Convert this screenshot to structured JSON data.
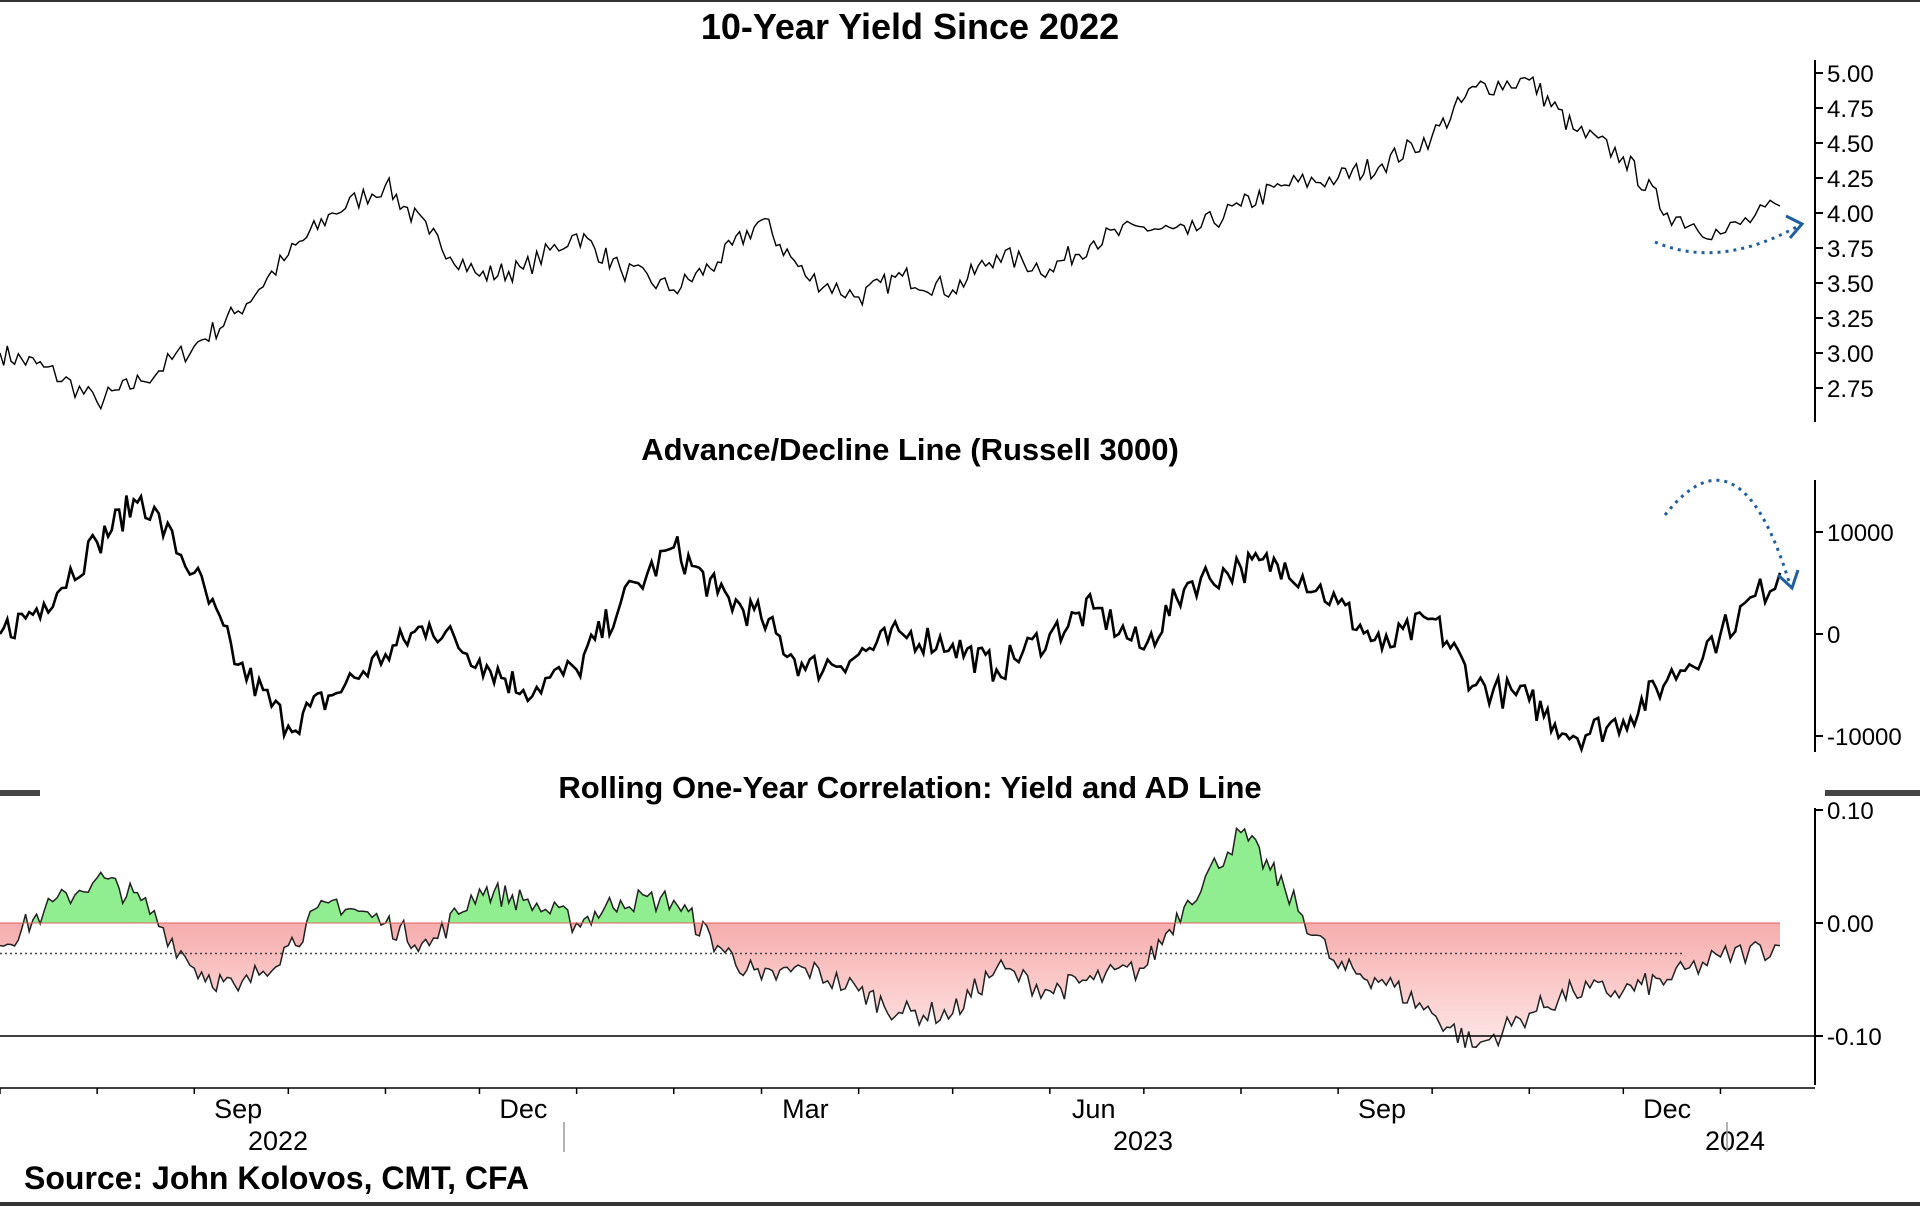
{
  "source": "Source: John Kolovos, CMT, CFA",
  "chart_data": [
    {
      "id": "yield",
      "type": "line",
      "title": "10-Year Yield Since 2022",
      "x": [
        "2022-07-01",
        "2022-07-15",
        "2022-08-01",
        "2022-08-15",
        "2022-09-01",
        "2022-09-15",
        "2022-10-01",
        "2022-10-15",
        "2022-11-01",
        "2022-11-15",
        "2022-12-01",
        "2022-12-15",
        "2023-01-01",
        "2023-01-15",
        "2023-02-01",
        "2023-02-15",
        "2023-03-01",
        "2023-03-15",
        "2023-04-01",
        "2023-04-15",
        "2023-05-01",
        "2023-05-15",
        "2023-06-01",
        "2023-06-15",
        "2023-07-01",
        "2023-07-15",
        "2023-08-01",
        "2023-08-15",
        "2023-09-01",
        "2023-09-15",
        "2023-10-01",
        "2023-10-15",
        "2023-11-01",
        "2023-11-15",
        "2023-12-01",
        "2023-12-15",
        "2024-01-01",
        "2024-01-20"
      ],
      "series": [
        {
          "values": [
            3.0,
            2.9,
            2.65,
            2.8,
            3.05,
            3.3,
            3.7,
            4.0,
            4.2,
            3.85,
            3.55,
            3.6,
            3.85,
            3.6,
            3.45,
            3.65,
            3.95,
            3.55,
            3.4,
            3.55,
            3.45,
            3.7,
            3.6,
            3.8,
            3.9,
            3.85,
            4.05,
            4.2,
            4.25,
            4.35,
            4.55,
            4.9,
            4.95,
            4.6,
            4.4,
            4.0,
            3.85,
            4.05
          ]
        }
      ],
      "ylim": [
        2.5,
        5.1
      ],
      "yticks": [
        "5.00",
        "4.75",
        "4.50",
        "4.25",
        "4.00",
        "3.75",
        "3.50",
        "3.25",
        "3.00",
        "2.75",
        "2.50"
      ],
      "color": "#000000"
    },
    {
      "id": "adline",
      "type": "line",
      "title": "Advance/Decline Line (Russell 3000)",
      "x": [
        "2022-07-01",
        "2022-07-15",
        "2022-08-01",
        "2022-08-15",
        "2022-09-01",
        "2022-09-15",
        "2022-10-01",
        "2022-10-15",
        "2022-11-01",
        "2022-11-15",
        "2022-12-01",
        "2022-12-15",
        "2023-01-01",
        "2023-01-15",
        "2023-02-01",
        "2023-02-15",
        "2023-03-01",
        "2023-03-15",
        "2023-04-01",
        "2023-04-15",
        "2023-05-01",
        "2023-05-15",
        "2023-06-01",
        "2023-06-15",
        "2023-07-01",
        "2023-07-15",
        "2023-08-01",
        "2023-08-15",
        "2023-09-01",
        "2023-09-15",
        "2023-10-01",
        "2023-10-15",
        "2023-11-01",
        "2023-11-15",
        "2023-12-01",
        "2023-12-15",
        "2024-01-01",
        "2024-01-20"
      ],
      "series": [
        {
          "values": [
            0,
            3000,
            9000,
            13500,
            6000,
            -3000,
            -9000,
            -6000,
            -2000,
            1000,
            -2500,
            -5500,
            -3500,
            3000,
            8500,
            4000,
            1500,
            -3500,
            -2000,
            0,
            -1000,
            -3500,
            0,
            2500,
            -1500,
            5000,
            6500,
            7000,
            3000,
            -1500,
            1500,
            -5000,
            -6500,
            -10000,
            -8500,
            -4500,
            0,
            6000
          ]
        }
      ],
      "ylim": [
        -12000,
        15000
      ],
      "yticks": [
        "10000",
        "0",
        "-10000"
      ],
      "color": "#000000"
    },
    {
      "id": "correlation",
      "type": "area",
      "title": "Rolling One-Year Correlation: Yield and AD Line",
      "x": [
        "2022-07-01",
        "2022-07-15",
        "2022-08-01",
        "2022-08-15",
        "2022-09-01",
        "2022-09-15",
        "2022-10-01",
        "2022-10-15",
        "2022-11-01",
        "2022-11-15",
        "2022-12-01",
        "2022-12-15",
        "2023-01-01",
        "2023-01-15",
        "2023-02-01",
        "2023-02-15",
        "2023-03-01",
        "2023-03-15",
        "2023-04-01",
        "2023-04-15",
        "2023-05-01",
        "2023-05-15",
        "2023-06-01",
        "2023-06-15",
        "2023-07-01",
        "2023-07-15",
        "2023-08-01",
        "2023-08-15",
        "2023-09-01",
        "2023-09-15",
        "2023-10-01",
        "2023-10-15",
        "2023-11-01",
        "2023-11-15",
        "2023-12-01",
        "2023-12-15",
        "2024-01-01",
        "2024-01-20"
      ],
      "series": [
        {
          "values": [
            -0.02,
            0.01,
            0.04,
            0.02,
            -0.04,
            -0.06,
            -0.02,
            0.02,
            0.0,
            -0.02,
            0.03,
            0.02,
            0.0,
            0.02,
            0.02,
            -0.02,
            -0.05,
            -0.04,
            -0.06,
            -0.08,
            -0.08,
            -0.04,
            -0.06,
            -0.05,
            -0.04,
            0.02,
            0.08,
            0.03,
            -0.04,
            -0.05,
            -0.08,
            -0.11,
            -0.08,
            -0.06,
            -0.06,
            -0.05,
            -0.03,
            -0.02
          ]
        }
      ],
      "ylim": [
        -0.145,
        0.1
      ],
      "yticks": [
        "0.10",
        "0.00",
        "-0.10"
      ],
      "positive_color": "#90ee90",
      "negative_color": "#f08080",
      "reference_line": -0.027
    }
  ],
  "x_axis": {
    "months": [
      "Sep",
      "Dec",
      "Mar",
      "Jun",
      "Sep",
      "Dec"
    ],
    "years": [
      "2022",
      "2023",
      "2024"
    ]
  }
}
